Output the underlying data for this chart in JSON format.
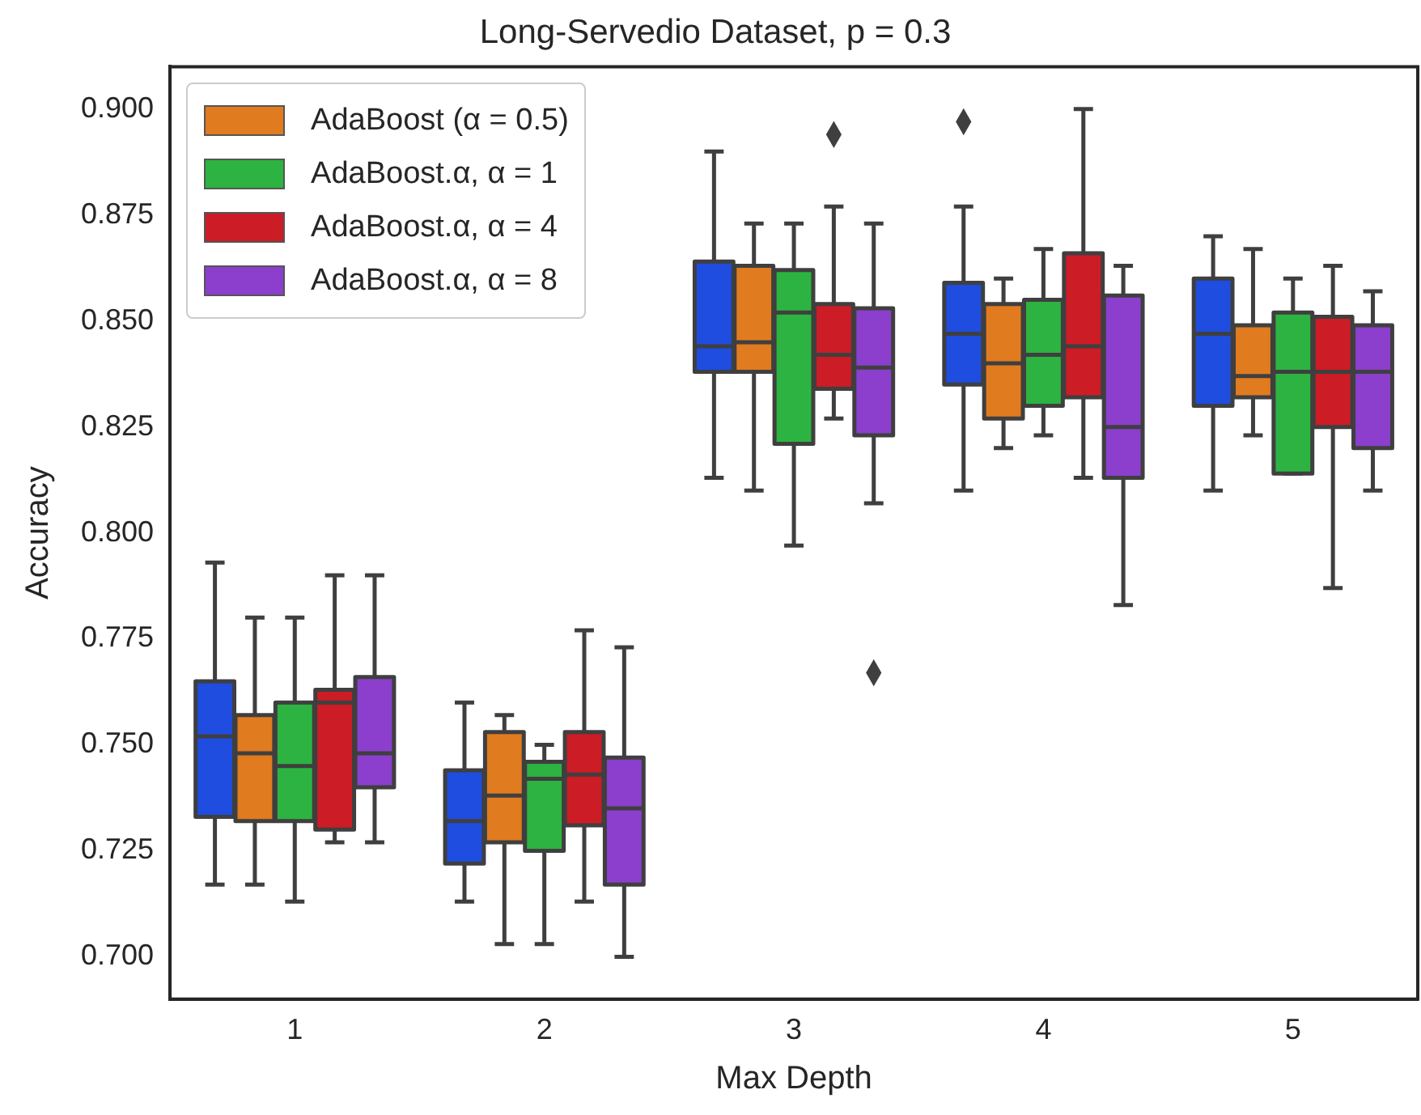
{
  "chart_data": {
    "type": "box",
    "title": "Long-Servedio Dataset, p = 0.3",
    "xlabel": "Max Depth",
    "ylabel": "Accuracy",
    "categories": [
      "1",
      "2",
      "3",
      "4",
      "5"
    ],
    "ylim": [
      0.69,
      0.91
    ],
    "yticks": [
      {
        "value": 0.7,
        "label": "0.700"
      },
      {
        "value": 0.725,
        "label": "0.725"
      },
      {
        "value": 0.75,
        "label": "0.750"
      },
      {
        "value": 0.775,
        "label": "0.775"
      },
      {
        "value": 0.8,
        "label": "0.800"
      },
      {
        "value": 0.825,
        "label": "0.825"
      },
      {
        "value": 0.85,
        "label": "0.850"
      },
      {
        "value": 0.875,
        "label": "0.875"
      },
      {
        "value": 0.9,
        "label": "0.900"
      }
    ],
    "grid": false,
    "legend": "top left",
    "marker": "diamond",
    "series": [
      {
        "color": "#1f4de0",
        "boxes": [
          {
            "low": 0.717,
            "q1": 0.733,
            "median": 0.752,
            "q3": 0.765,
            "high": 0.793
          },
          {
            "low": 0.713,
            "q1": 0.722,
            "median": 0.732,
            "q3": 0.744,
            "high": 0.76
          },
          {
            "low": 0.813,
            "q1": 0.838,
            "median": 0.844,
            "q3": 0.864,
            "high": 0.89
          },
          {
            "low": 0.81,
            "q1": 0.835,
            "median": 0.847,
            "q3": 0.859,
            "high": 0.877,
            "outliers": [
              0.897
            ]
          },
          {
            "low": 0.81,
            "q1": 0.83,
            "median": 0.847,
            "q3": 0.86,
            "high": 0.87
          }
        ]
      },
      {
        "name": "AdaBoost (α = 0.5)",
        "color": "#e07b1f",
        "boxes": [
          {
            "low": 0.717,
            "q1": 0.732,
            "median": 0.748,
            "q3": 0.757,
            "high": 0.78
          },
          {
            "low": 0.703,
            "q1": 0.727,
            "median": 0.738,
            "q3": 0.753,
            "high": 0.757
          },
          {
            "low": 0.81,
            "q1": 0.838,
            "median": 0.845,
            "q3": 0.863,
            "high": 0.873
          },
          {
            "low": 0.82,
            "q1": 0.827,
            "median": 0.84,
            "q3": 0.854,
            "high": 0.86
          },
          {
            "low": 0.823,
            "q1": 0.832,
            "median": 0.837,
            "q3": 0.849,
            "high": 0.867
          }
        ]
      },
      {
        "name": "AdaBoost.α, α = 1",
        "color": "#2db341",
        "boxes": [
          {
            "low": 0.713,
            "q1": 0.732,
            "median": 0.745,
            "q3": 0.76,
            "high": 0.78
          },
          {
            "low": 0.703,
            "q1": 0.725,
            "median": 0.742,
            "q3": 0.746,
            "high": 0.75
          },
          {
            "low": 0.797,
            "q1": 0.821,
            "median": 0.852,
            "q3": 0.862,
            "high": 0.873
          },
          {
            "low": 0.823,
            "q1": 0.83,
            "median": 0.842,
            "q3": 0.855,
            "high": 0.867
          },
          {
            "low": 0.814,
            "q1": 0.814,
            "median": 0.838,
            "q3": 0.852,
            "high": 0.86
          }
        ]
      },
      {
        "name": "AdaBoost.α, α = 4",
        "color": "#cc1c26",
        "boxes": [
          {
            "low": 0.727,
            "q1": 0.73,
            "median": 0.76,
            "q3": 0.763,
            "high": 0.79
          },
          {
            "low": 0.713,
            "q1": 0.731,
            "median": 0.743,
            "q3": 0.753,
            "high": 0.777
          },
          {
            "low": 0.827,
            "q1": 0.834,
            "median": 0.842,
            "q3": 0.854,
            "high": 0.877,
            "outliers": [
              0.894
            ]
          },
          {
            "low": 0.813,
            "q1": 0.832,
            "median": 0.844,
            "q3": 0.866,
            "high": 0.9
          },
          {
            "low": 0.787,
            "q1": 0.825,
            "median": 0.838,
            "q3": 0.851,
            "high": 0.863
          }
        ]
      },
      {
        "name": "AdaBoost.α, α = 8",
        "color": "#8b3fcc",
        "boxes": [
          {
            "low": 0.727,
            "q1": 0.74,
            "median": 0.748,
            "q3": 0.766,
            "high": 0.79
          },
          {
            "low": 0.7,
            "q1": 0.717,
            "median": 0.735,
            "q3": 0.747,
            "high": 0.773
          },
          {
            "low": 0.807,
            "q1": 0.823,
            "median": 0.839,
            "q3": 0.853,
            "high": 0.873,
            "outliers": [
              0.767
            ]
          },
          {
            "low": 0.783,
            "q1": 0.813,
            "median": 0.825,
            "q3": 0.856,
            "high": 0.863
          },
          {
            "low": 0.81,
            "q1": 0.82,
            "median": 0.838,
            "q3": 0.849,
            "high": 0.857
          }
        ]
      }
    ]
  }
}
